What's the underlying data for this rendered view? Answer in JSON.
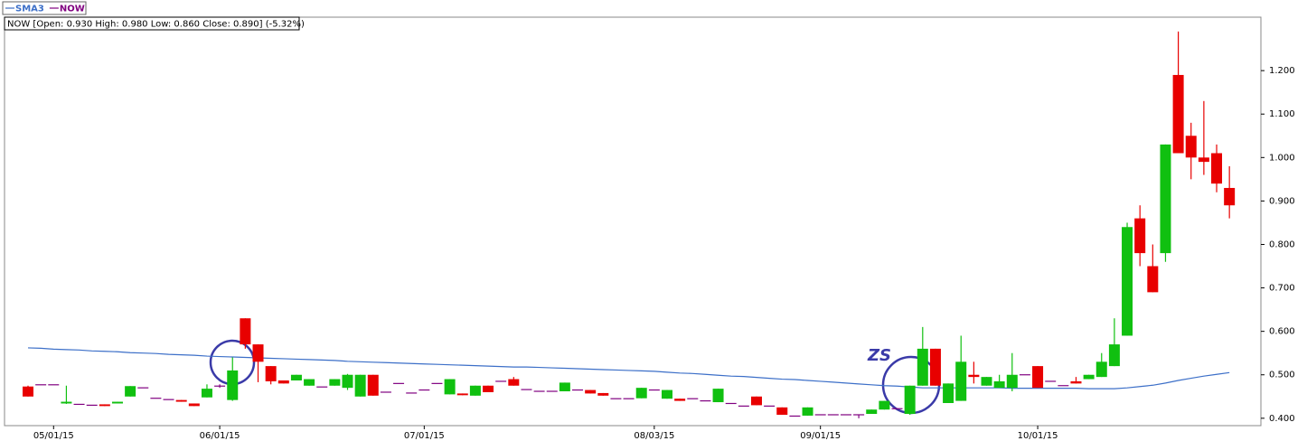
{
  "chart_data": {
    "type": "candlestick",
    "info": "NOW [Open: 0.930  High: 0.980  Low: 0.860  Close: 0.890] (-5.32%)",
    "legend": "top-left",
    "categories": [
      null,
      null,
      "05/01/15",
      null,
      null,
      null,
      null,
      null,
      null,
      null,
      null,
      null,
      null,
      null,
      null,
      "06/01/15",
      null,
      null,
      null,
      null,
      null,
      null,
      null,
      null,
      null,
      null,
      null,
      null,
      null,
      null,
      null,
      "07/01/15",
      null,
      null,
      null,
      null,
      null,
      null,
      null,
      null,
      null,
      null,
      null,
      null,
      null,
      null,
      null,
      null,
      null,
      "08/03/15",
      null,
      null,
      null,
      null,
      null,
      null,
      null,
      null,
      null,
      null,
      null,
      null,
      "09/01/15",
      null,
      null,
      null,
      null,
      null,
      null,
      null,
      null,
      null,
      null,
      null,
      null,
      null,
      null,
      null,
      null,
      "10/01/15",
      null,
      null,
      null,
      null,
      null,
      null,
      null,
      null,
      null,
      null,
      null,
      null,
      null,
      null,
      null
    ],
    "ylim": [
      0.383,
      1.323
    ],
    "yticks": [
      {
        "value": 0.4,
        "label": "0.400"
      },
      {
        "value": 0.5,
        "label": "0.500"
      },
      {
        "value": 0.6,
        "label": "0.600"
      },
      {
        "value": 0.7,
        "label": "0.700"
      },
      {
        "value": 0.8,
        "label": "0.800"
      },
      {
        "value": 0.9,
        "label": "0.900"
      },
      {
        "value": 1.0,
        "label": "1.000"
      },
      {
        "value": 1.1,
        "label": "1.100"
      },
      {
        "value": 1.2,
        "label": "1.200"
      }
    ],
    "grid": false,
    "annotations": [
      {
        "text": "ZS"
      }
    ],
    "series": [
      {
        "name": "SMA3",
        "type": "line",
        "color": "#3c6fc8",
        "values": [
          0.562,
          0.561,
          0.559,
          0.558,
          0.557,
          0.555,
          0.554,
          0.553,
          0.551,
          0.55,
          0.549,
          0.547,
          0.546,
          0.545,
          0.543,
          0.542,
          0.541,
          0.54,
          0.539,
          0.538,
          0.537,
          0.536,
          0.535,
          0.534,
          0.533,
          0.531,
          0.53,
          0.529,
          0.528,
          0.527,
          0.526,
          0.525,
          0.524,
          0.523,
          0.522,
          0.521,
          0.52,
          0.519,
          0.518,
          0.518,
          0.517,
          0.516,
          0.515,
          0.514,
          0.513,
          0.512,
          0.511,
          0.51,
          0.509,
          0.508,
          0.506,
          0.504,
          0.503,
          0.501,
          0.499,
          0.497,
          0.496,
          0.494,
          0.492,
          0.49,
          0.489,
          0.487,
          0.485,
          0.483,
          0.481,
          0.479,
          0.477,
          0.475,
          0.474,
          0.472,
          0.47,
          0.47,
          0.47,
          0.47,
          0.47,
          0.47,
          0.47,
          0.469,
          0.469,
          0.469,
          0.469,
          0.469,
          0.469,
          0.468,
          0.468,
          0.468,
          0.47,
          0.473,
          0.476,
          0.481,
          0.487,
          0.492,
          0.497,
          0.501,
          0.505
        ]
      },
      {
        "name": "NOW",
        "type": "candlestick",
        "color": "#800080",
        "up_color": "#10c010",
        "down_color": "#e80000",
        "open": [
          0.473,
          0.477,
          0.477,
          0.434,
          0.432,
          0.43,
          0.432,
          0.434,
          0.45,
          0.47,
          0.446,
          0.443,
          0.442,
          0.434,
          0.448,
          0.474,
          0.442,
          0.63,
          0.57,
          0.52,
          0.487,
          0.487,
          0.475,
          0.472,
          0.475,
          0.47,
          0.45,
          0.5,
          0.46,
          0.48,
          0.458,
          0.465,
          0.48,
          0.455,
          0.457,
          0.452,
          0.475,
          0.485,
          0.49,
          0.466,
          0.462,
          0.462,
          0.462,
          0.465,
          0.465,
          0.458,
          0.445,
          0.445,
          0.446,
          0.465,
          0.445,
          0.445,
          0.445,
          0.44,
          0.437,
          0.434,
          0.428,
          0.45,
          0.428,
          0.425,
          0.405,
          0.406,
          0.408,
          0.408,
          0.408,
          0.408,
          0.41,
          0.42,
          0.422,
          0.41,
          0.475,
          0.56,
          0.435,
          0.44,
          0.5,
          0.475,
          0.47,
          0.47,
          0.5,
          0.52,
          0.485,
          0.475,
          0.485,
          0.49,
          0.495,
          0.52,
          0.59,
          0.86,
          0.75,
          0.78,
          1.19,
          1.05,
          1.0,
          1.01,
          0.93
        ],
        "high": [
          0.475,
          0.477,
          0.477,
          0.475,
          0.432,
          0.43,
          0.432,
          0.438,
          0.474,
          0.47,
          0.446,
          0.443,
          0.442,
          0.434,
          0.478,
          0.478,
          0.54,
          0.63,
          0.57,
          0.52,
          0.487,
          0.5,
          0.49,
          0.472,
          0.49,
          0.502,
          0.5,
          0.5,
          0.46,
          0.48,
          0.458,
          0.465,
          0.48,
          0.49,
          0.457,
          0.475,
          0.475,
          0.485,
          0.495,
          0.466,
          0.462,
          0.462,
          0.482,
          0.465,
          0.465,
          0.458,
          0.445,
          0.445,
          0.47,
          0.465,
          0.465,
          0.445,
          0.445,
          0.44,
          0.468,
          0.434,
          0.428,
          0.45,
          0.428,
          0.425,
          0.405,
          0.425,
          0.408,
          0.408,
          0.408,
          0.408,
          0.42,
          0.44,
          0.422,
          0.475,
          0.61,
          0.56,
          0.48,
          0.59,
          0.53,
          0.495,
          0.5,
          0.55,
          0.5,
          0.52,
          0.485,
          0.475,
          0.495,
          0.5,
          0.55,
          0.63,
          0.85,
          0.89,
          0.8,
          1.03,
          1.29,
          1.08,
          1.13,
          1.03,
          0.98
        ],
        "low": [
          0.45,
          0.477,
          0.477,
          0.433,
          0.432,
          0.43,
          0.428,
          0.434,
          0.45,
          0.47,
          0.446,
          0.443,
          0.438,
          0.428,
          0.448,
          0.47,
          0.44,
          0.56,
          0.483,
          0.478,
          0.48,
          0.487,
          0.475,
          0.472,
          0.475,
          0.465,
          0.45,
          0.452,
          0.46,
          0.48,
          0.458,
          0.465,
          0.48,
          0.455,
          0.453,
          0.452,
          0.46,
          0.485,
          0.475,
          0.466,
          0.462,
          0.462,
          0.462,
          0.465,
          0.457,
          0.452,
          0.445,
          0.445,
          0.446,
          0.465,
          0.445,
          0.44,
          0.445,
          0.44,
          0.437,
          0.434,
          0.428,
          0.43,
          0.428,
          0.408,
          0.405,
          0.406,
          0.408,
          0.408,
          0.408,
          0.4,
          0.41,
          0.42,
          0.422,
          0.408,
          0.475,
          0.475,
          0.435,
          0.44,
          0.48,
          0.475,
          0.47,
          0.462,
          0.5,
          0.47,
          0.485,
          0.475,
          0.48,
          0.49,
          0.495,
          0.52,
          0.59,
          0.75,
          0.69,
          0.76,
          1.01,
          0.95,
          0.96,
          0.92,
          0.86
        ],
        "close": [
          0.45,
          0.477,
          0.477,
          0.438,
          0.432,
          0.43,
          0.428,
          0.438,
          0.474,
          0.47,
          0.446,
          0.443,
          0.438,
          0.428,
          0.468,
          0.474,
          0.51,
          0.57,
          0.53,
          0.485,
          0.48,
          0.5,
          0.49,
          0.472,
          0.49,
          0.5,
          0.5,
          0.452,
          0.46,
          0.48,
          0.458,
          0.465,
          0.48,
          0.49,
          0.453,
          0.475,
          0.46,
          0.485,
          0.475,
          0.466,
          0.462,
          0.462,
          0.482,
          0.465,
          0.457,
          0.452,
          0.445,
          0.445,
          0.47,
          0.465,
          0.465,
          0.44,
          0.445,
          0.44,
          0.468,
          0.434,
          0.428,
          0.43,
          0.428,
          0.408,
          0.405,
          0.425,
          0.408,
          0.408,
          0.408,
          0.408,
          0.42,
          0.44,
          0.422,
          0.475,
          0.56,
          0.475,
          0.48,
          0.53,
          0.495,
          0.495,
          0.485,
          0.5,
          0.5,
          0.47,
          0.485,
          0.475,
          0.48,
          0.5,
          0.53,
          0.57,
          0.84,
          0.78,
          0.69,
          1.03,
          1.01,
          1.0,
          0.99,
          0.94,
          0.89
        ]
      }
    ]
  }
}
